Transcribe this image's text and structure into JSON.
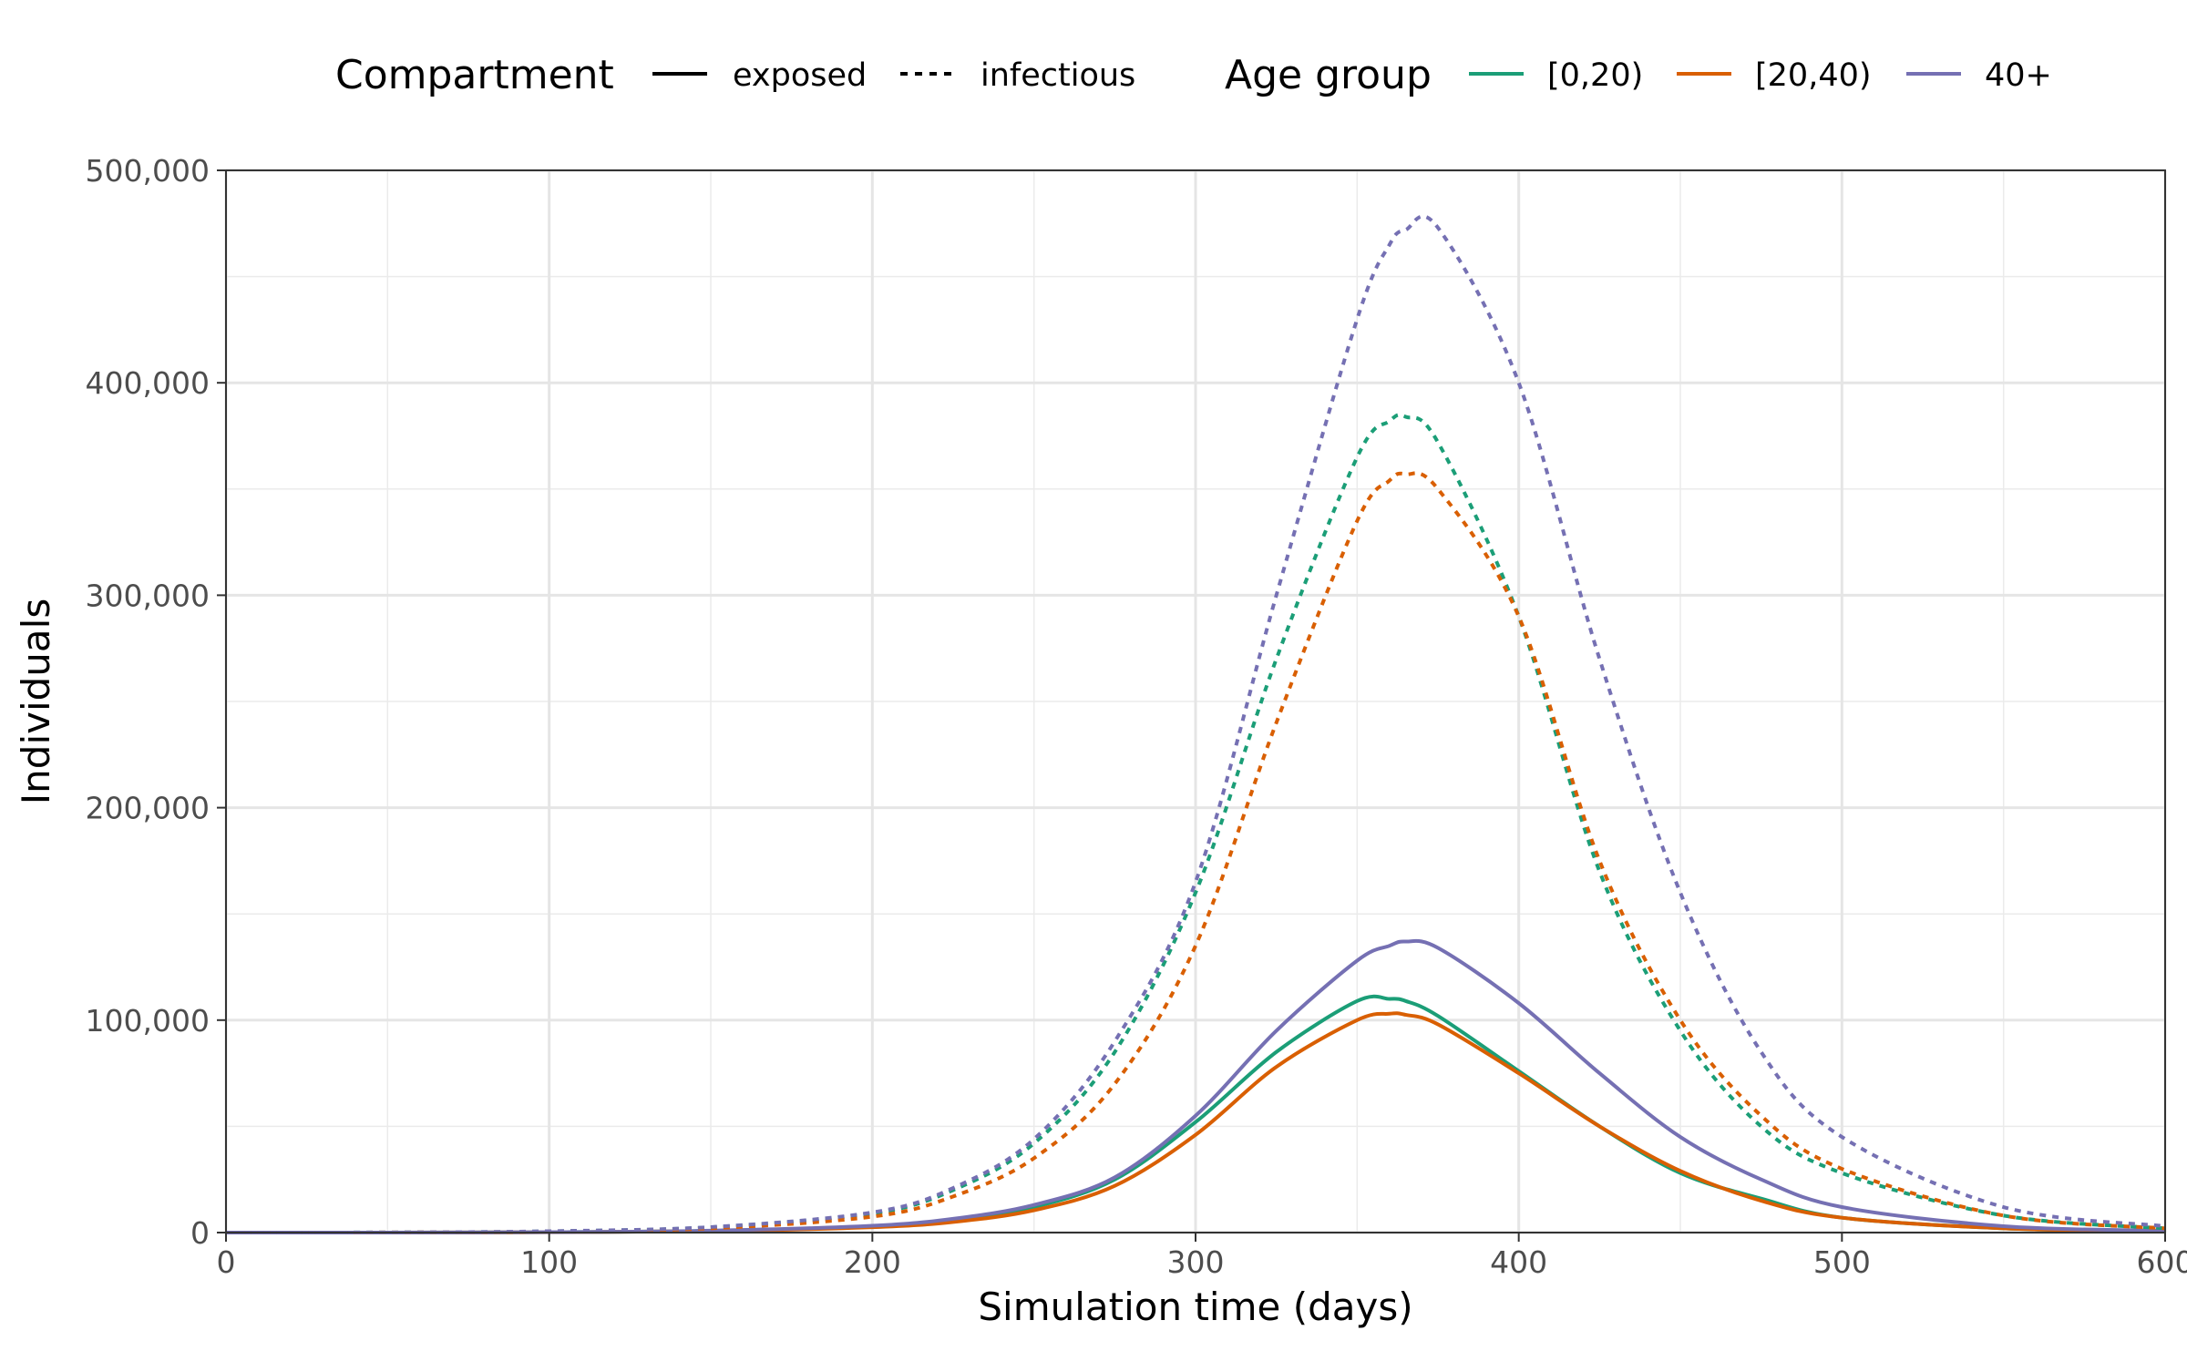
{
  "legend": {
    "compartment_title": "Compartment",
    "compartment_items": [
      {
        "label": "exposed",
        "linetype": "solid"
      },
      {
        "label": "infectious",
        "linetype": "dashed"
      }
    ],
    "age_title": "Age group",
    "age_items": [
      {
        "label": "[0,20)",
        "color": "#1b9e77"
      },
      {
        "label": "[20,40)",
        "color": "#d95f02"
      },
      {
        "label": "40+",
        "color": "#7570b3"
      }
    ]
  },
  "chart_data": {
    "type": "line",
    "title": "",
    "xlabel": "Simulation time (days)",
    "ylabel": "Individuals",
    "xlim": [
      0,
      600
    ],
    "ylim": [
      0,
      500000
    ],
    "x_ticks": [
      0,
      100,
      200,
      300,
      400,
      500,
      600
    ],
    "x_tick_labels": [
      "0",
      "100",
      "200",
      "300",
      "400",
      "500",
      "600"
    ],
    "y_ticks": [
      0,
      100000,
      200000,
      300000,
      400000,
      500000
    ],
    "y_tick_labels": [
      "0",
      "100,000",
      "200,000",
      "300,000",
      "400,000",
      "500,000"
    ],
    "grid": true,
    "legend_position": "top",
    "x": [
      0,
      50,
      100,
      150,
      200,
      225,
      250,
      275,
      300,
      325,
      350,
      360,
      365,
      375,
      400,
      425,
      450,
      475,
      500,
      550,
      600
    ],
    "series": [
      {
        "name": "exposed",
        "group": "[0,20)",
        "color": "#1b9e77",
        "dash": false,
        "values": [
          0,
          0,
          200,
          800,
          3000,
          6000,
          12000,
          25000,
          52000,
          85000,
          109000,
          110000,
          109000,
          102000,
          76000,
          50000,
          28000,
          16000,
          7000,
          2000,
          500
        ]
      },
      {
        "name": "exposed",
        "group": "[20,40)",
        "color": "#d95f02",
        "dash": false,
        "values": [
          0,
          0,
          150,
          700,
          2500,
          5000,
          10500,
          22000,
          46000,
          78000,
          100000,
          103000,
          102500,
          98000,
          75000,
          50000,
          29000,
          15000,
          7000,
          2000,
          500
        ]
      },
      {
        "name": "exposed",
        "group": "40+",
        "color": "#7570b3",
        "dash": false,
        "values": [
          0,
          0,
          200,
          900,
          3200,
          6500,
          13000,
          26000,
          55000,
          95000,
          128000,
          135000,
          137000,
          134000,
          108000,
          75000,
          45000,
          25000,
          12000,
          3000,
          800
        ]
      },
      {
        "name": "infectious",
        "group": "[0,20)",
        "color": "#1b9e77",
        "dash": true,
        "values": [
          0,
          50,
          600,
          2500,
          9000,
          20000,
          42000,
          85000,
          160000,
          270000,
          365000,
          382000,
          384000,
          372000,
          290000,
          170000,
          95000,
          50000,
          28000,
          8000,
          2000
        ]
      },
      {
        "name": "infectious",
        "group": "[20,40)",
        "color": "#d95f02",
        "dash": true,
        "values": [
          0,
          40,
          500,
          2000,
          7500,
          17000,
          35000,
          70000,
          135000,
          240000,
          335000,
          354000,
          357000,
          350000,
          290000,
          175000,
          100000,
          55000,
          30000,
          8000,
          2000
        ]
      },
      {
        "name": "infectious",
        "group": "40+",
        "color": "#7570b3",
        "dash": true,
        "values": [
          0,
          50,
          650,
          2600,
          9500,
          21000,
          44000,
          90000,
          165000,
          300000,
          430000,
          465000,
          472000,
          473000,
          400000,
          270000,
          160000,
          85000,
          45000,
          12000,
          3000
        ]
      }
    ]
  }
}
